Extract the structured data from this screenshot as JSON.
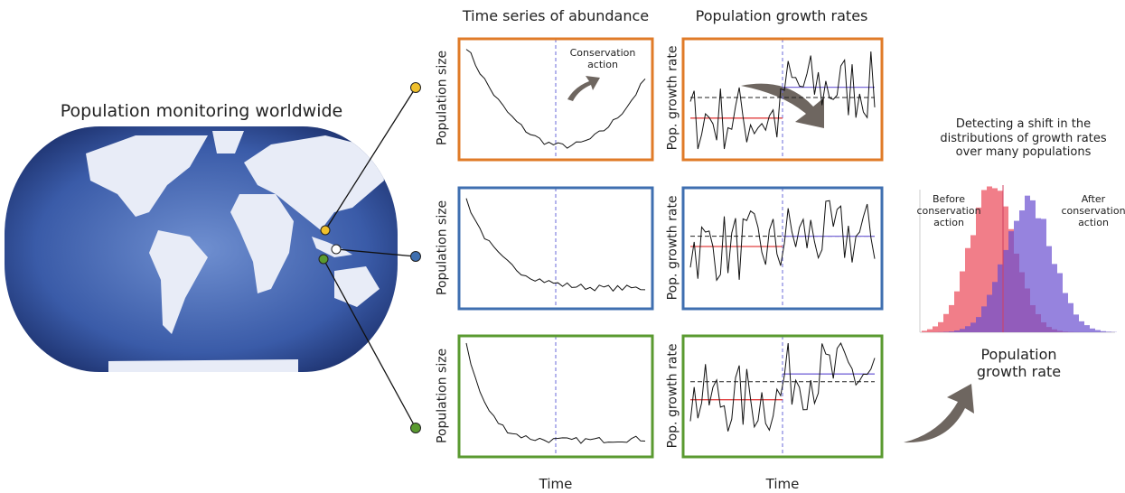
{
  "map": {
    "title": "Population monitoring worldwide"
  },
  "columns": [
    {
      "title": "Time series of abundance",
      "y_label": "Population size",
      "x_label": "Time"
    },
    {
      "title": "Population growth rates",
      "y_label": "Pop. growth rate",
      "x_label": "Time"
    }
  ],
  "annotation": "Conservation action",
  "summary": {
    "text": "Detecting a shift in the distributions of growth rates over many populations",
    "before": "Before conservation action",
    "after": "After conservation action",
    "x_label": "Population growth rate"
  }
}
